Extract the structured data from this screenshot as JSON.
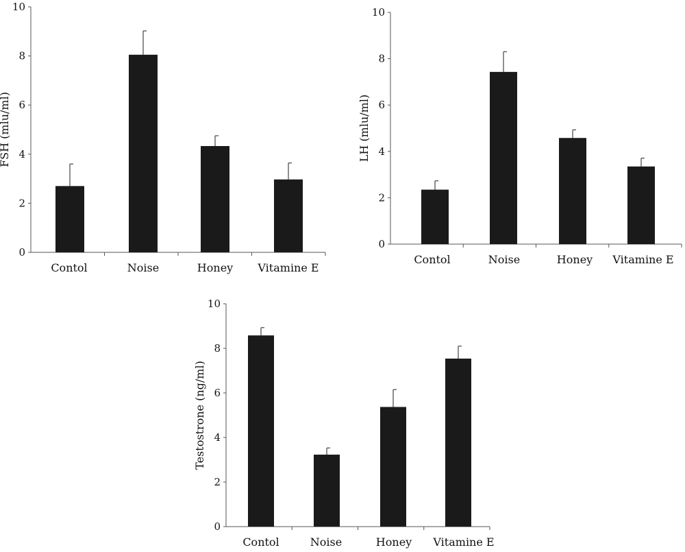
{
  "bar_color": "#1a1a1a",
  "chart_data": [
    {
      "type": "bar",
      "categories": [
        "Contol",
        "Noise",
        "Honey",
        "Vitamine E"
      ],
      "values": [
        2.7,
        8.05,
        4.33,
        2.97
      ],
      "errors": [
        0.9,
        0.97,
        0.42,
        0.67
      ],
      "ylabel": "FSH (mlu/ml)",
      "xlabel": "",
      "ylim": [
        0,
        10
      ],
      "yticks": [
        0,
        2,
        4,
        6,
        8,
        10
      ],
      "grid": false
    },
    {
      "type": "bar",
      "categories": [
        "Contol",
        "Noise",
        "Honey",
        "Vitamine E"
      ],
      "values": [
        2.35,
        7.43,
        4.58,
        3.35
      ],
      "errors": [
        0.38,
        0.87,
        0.35,
        0.36
      ],
      "ylabel": "LH (mlu/ml)",
      "xlabel": "",
      "ylim": [
        0,
        10
      ],
      "yticks": [
        0,
        2,
        4,
        6,
        8,
        10
      ],
      "grid": false
    },
    {
      "type": "bar",
      "categories": [
        "Contol",
        "Noise",
        "Honey",
        "Vitamine E"
      ],
      "values": [
        8.58,
        3.23,
        5.37,
        7.54
      ],
      "errors": [
        0.35,
        0.3,
        0.78,
        0.56
      ],
      "ylabel": "Testostrone (ng/ml)",
      "xlabel": "",
      "ylim": [
        0,
        10
      ],
      "yticks": [
        0,
        2,
        4,
        6,
        8,
        10
      ],
      "grid": false
    }
  ]
}
